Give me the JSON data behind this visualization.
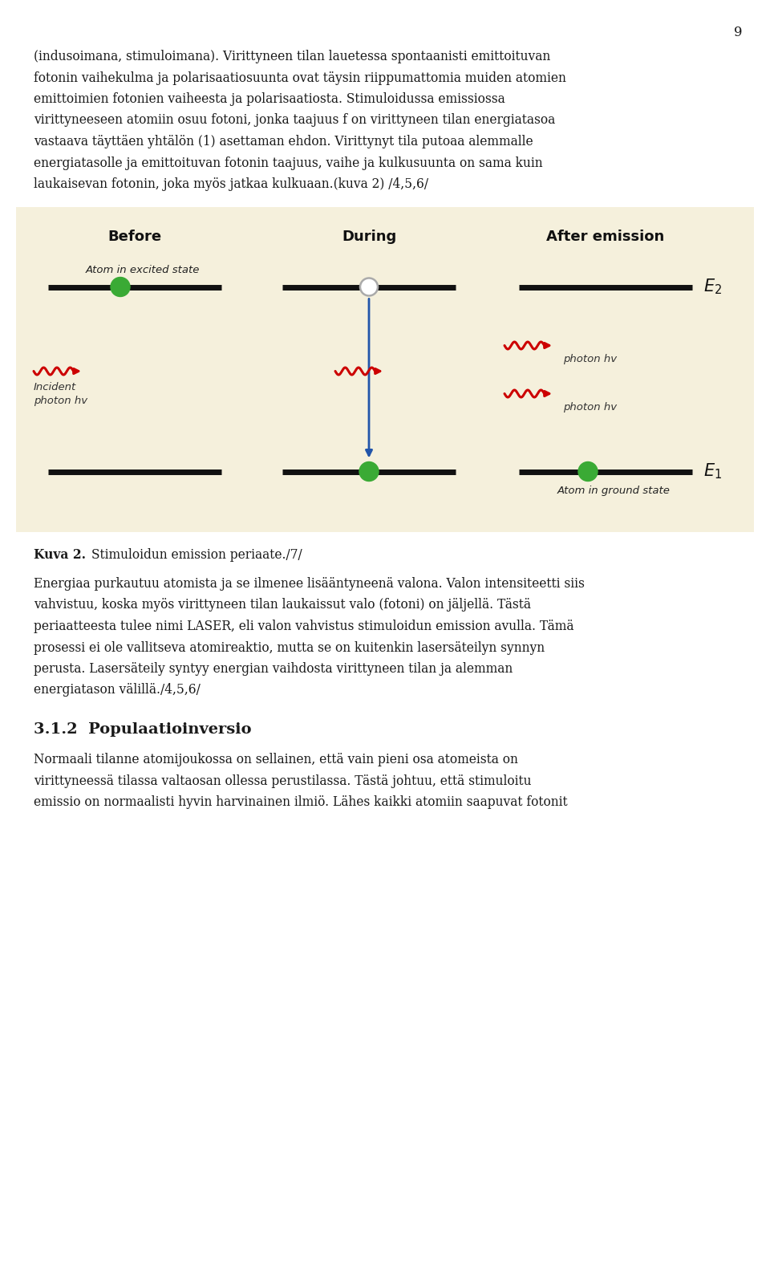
{
  "page_number": "9",
  "bg_color": "#FFFFFF",
  "diagram_bg": "#F5F0DC",
  "text_color": "#1a1a1a",
  "paragraphs": [
    "(indusoimana, stimuloimana). Virittyneen tilan lauetessa spontaanisti emittoituvan fotonin vaihekulma ja polarisaatiosuunta ovat täysin riippumattomia muiden atomien emittoimien fotonien vaiheesta ja polarisaatiosta. Stimuloidussa emissiossa virittyneeseen atomiin osuu fotoni, jonka taajuus f on virittyneen tilan energiatasoa vastaava täyttäen yhtälön (1) asettaman ehdon. Virittynyt tila putoaa alemmalle energiatasolle ja emittoituvan fotonin taajuus, vaihe ja kulkusuunta on sama kuin laukaisevan fotonin, joka myös jatkaa kulkuaan.(kuva 2) /4,5,6/",
    "Energiaa purkautuu atomista ja se ilmenee lisääntyneenä valona. Valon intensiteetti siis vahvistuu, koska myös virittyneen tilan laukaissut valo (fotoni) on jäljellä. Tästä periaatteesta tulee nimi LASER, eli valon vahvistus stimuloidun emission avulla. Tämä prosessi ei ole vallitseva atomireaktio, mutta se on kuitenkin lasersäteilyn synnyn perusta. Lasersäteily syntyy energian vaihdosta virittyneen tilan ja alemman energiatason välillä./4,5,6/",
    "Normaali tilanne atomijoukossa on sellainen, että vain pieni osa atomeista on virittyneessä tilassa valtaosan ollessa perustilassa. Tästä johtuu, että stimuloitu emissio on normaalisti hyvin harvinainen ilmiö. Lähes kaikki atomiin saapuvat fotonit"
  ],
  "section_title": "3.1.2  Populaatioinversio",
  "diagram": {
    "before_label": "Before",
    "during_label": "During",
    "after_label": "After emission",
    "atom_excited_label": "Atom in excited state",
    "atom_ground_label": "Atom in ground state",
    "photon_hv_label": "photon hv",
    "incident_line1": "Incident",
    "incident_line2": "photon hv",
    "line_color": "#111111",
    "green_color": "#3aaa35",
    "red_color": "#cc0000",
    "blue_color": "#2255aa",
    "diagram_bg": "#F5F0DC"
  }
}
